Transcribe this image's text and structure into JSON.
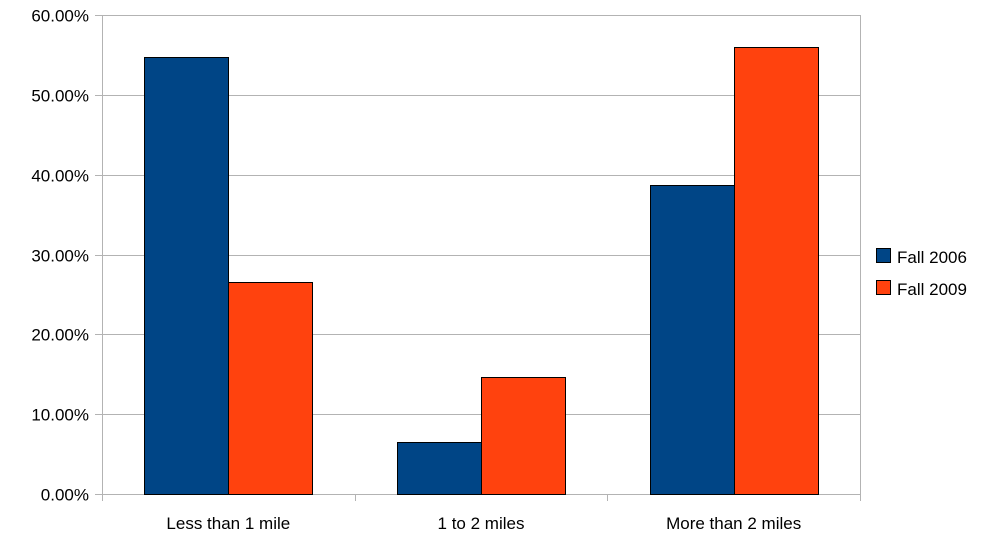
{
  "chart_data": {
    "type": "bar",
    "title": "",
    "xlabel": "",
    "ylabel": "",
    "categories": [
      "Less than 1 mile",
      "1 to 2 miles",
      "More than 2 miles"
    ],
    "series": [
      {
        "name": "Fall 2006",
        "color": "#004586",
        "values": [
          54.7,
          6.5,
          38.7
        ]
      },
      {
        "name": "Fall 2009",
        "color": "#ff420e",
        "values": [
          26.5,
          14.7,
          56.0
        ]
      }
    ],
    "ylim": [
      0,
      60
    ],
    "yticks": [
      0,
      10,
      20,
      30,
      40,
      50,
      60
    ],
    "ytick_labels": [
      "0.00%",
      "10.00%",
      "20.00%",
      "30.00%",
      "40.00%",
      "50.00%",
      "60.00%"
    ],
    "grid": true,
    "legend_position": "right",
    "colors": {
      "grid": "#b3b3b3",
      "axis": "#b3b3b3",
      "bar_border": "#000000"
    }
  }
}
